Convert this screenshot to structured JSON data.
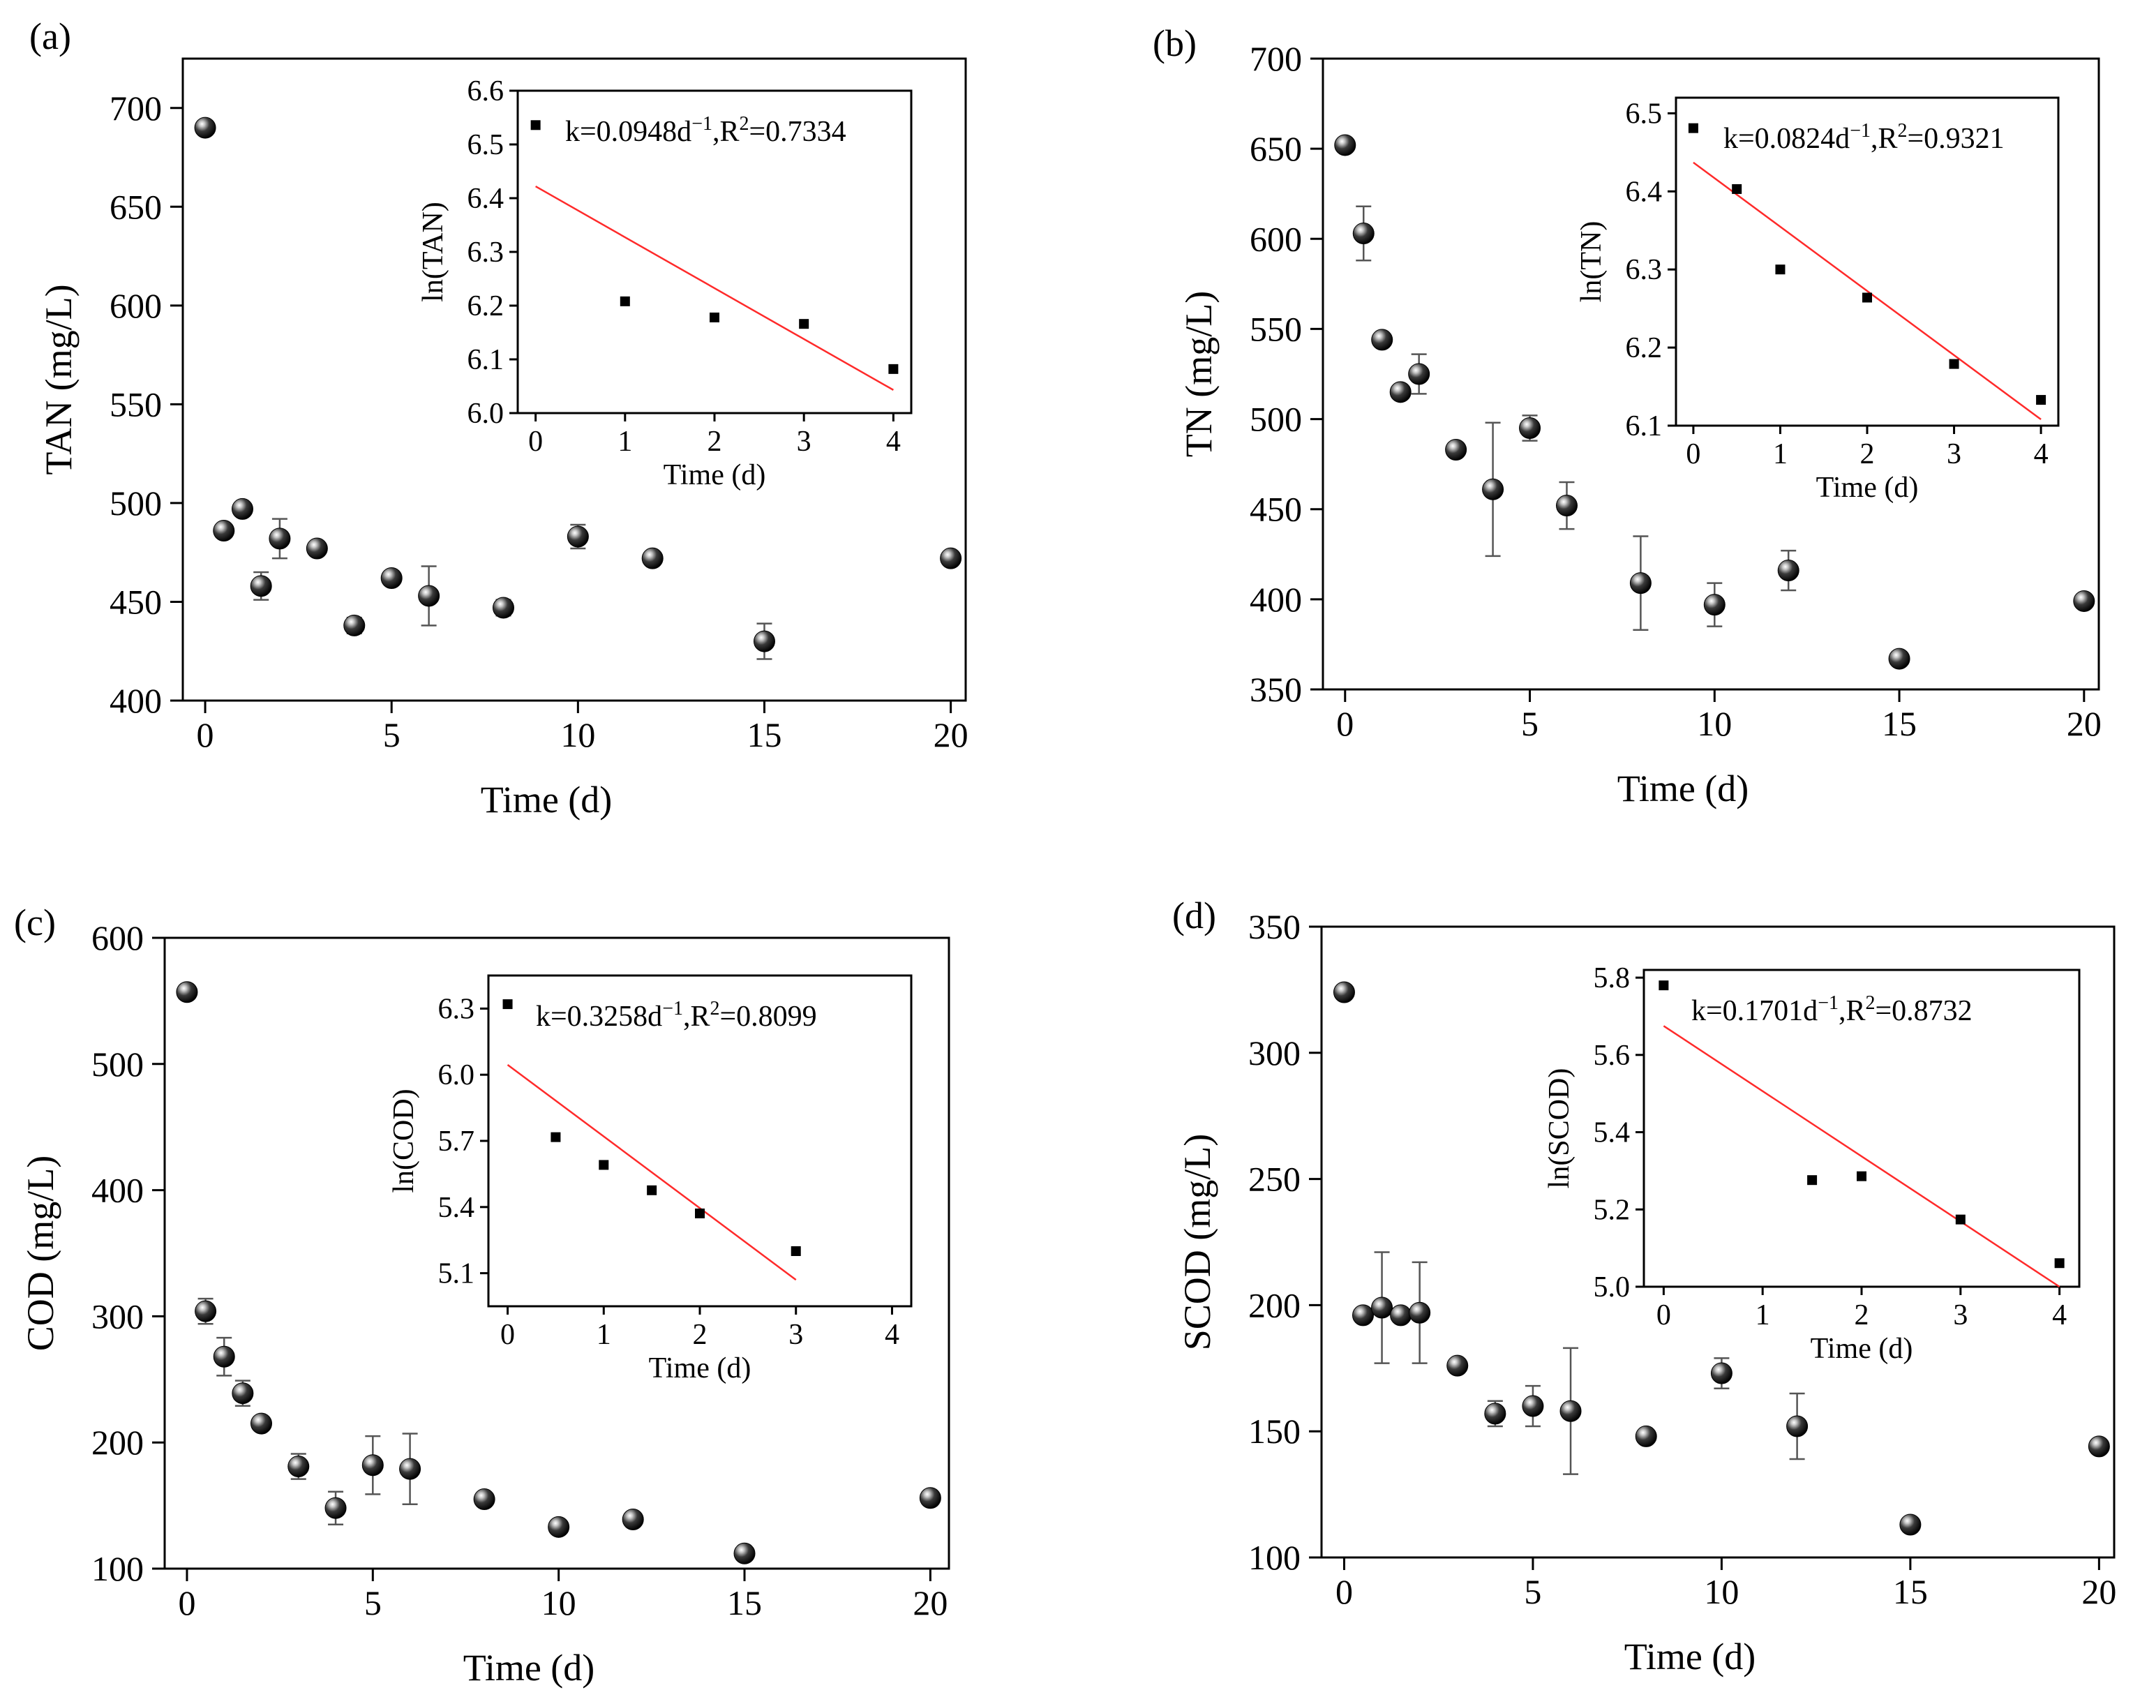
{
  "figure": {
    "x_tick_labels": [
      "0",
      "5",
      "10",
      "15",
      "20"
    ],
    "x_label": "Time (d)"
  },
  "chart_data": [
    {
      "type": "scatter",
      "panel_label": "(a)",
      "xlabel": "Time (d)",
      "ylabel": "TAN (mg/L)",
      "xlim": [
        -0.6,
        20.4
      ],
      "ylim": [
        400,
        725
      ],
      "xticks": [
        0,
        5,
        10,
        15,
        20
      ],
      "yticks": [
        400,
        450,
        500,
        550,
        600,
        650,
        700
      ],
      "x": [
        0,
        0.5,
        1,
        1.5,
        2,
        3,
        4,
        5,
        6,
        8,
        10,
        12,
        15,
        20
      ],
      "y": [
        690,
        486,
        497,
        458,
        482,
        477,
        438,
        462,
        453,
        447,
        483,
        472,
        430,
        472
      ],
      "err": [
        0,
        0,
        0,
        7,
        10,
        0,
        4,
        0,
        15,
        4,
        6,
        0,
        9,
        0
      ],
      "inset": {
        "xlabel": "Time (d)",
        "ylabel": "ln(TAN)",
        "xlim": [
          -0.2,
          4.2
        ],
        "ylim": [
          6.0,
          6.6
        ],
        "xticks": [
          0,
          1,
          2,
          3,
          4
        ],
        "yticks": [
          6.0,
          6.1,
          6.2,
          6.3,
          6.4,
          6.5,
          6.6
        ],
        "yticklabels": [
          "6.0",
          "6.1",
          "6.2",
          "6.3",
          "6.4",
          "6.5",
          "6.6"
        ],
        "x": [
          0,
          1,
          2,
          3,
          4
        ],
        "y": [
          6.536,
          6.208,
          6.178,
          6.166,
          6.082
        ],
        "fit": [
          [
            0,
            6.422
          ],
          [
            4,
            6.043
          ]
        ],
        "legend": {
          "k": "k=0.0948d",
          "sup1": "−1",
          "r": ",R",
          "sup2": "2",
          "val": "=0.7334"
        }
      }
    },
    {
      "type": "scatter",
      "panel_label": "(b)",
      "xlabel": "Time (d)",
      "ylabel": "TN (mg/L)",
      "xlim": [
        -0.6,
        20.4
      ],
      "ylim": [
        350,
        700
      ],
      "xticks": [
        0,
        5,
        10,
        15,
        20
      ],
      "yticks": [
        350,
        400,
        450,
        500,
        550,
        600,
        650,
        700
      ],
      "x": [
        0,
        0.5,
        1,
        1.5,
        2,
        3,
        4,
        5,
        6,
        8,
        10,
        12,
        15,
        20
      ],
      "y": [
        652,
        603,
        544,
        515,
        525,
        483,
        461,
        495,
        452,
        409,
        397,
        416,
        367,
        399
      ],
      "err": [
        0,
        15,
        0,
        0,
        11,
        0,
        37,
        7,
        13,
        26,
        12,
        11,
        0,
        0
      ],
      "inset": {
        "xlabel": "Time (d)",
        "ylabel": "ln(TN)",
        "xlim": [
          -0.2,
          4.2
        ],
        "ylim": [
          6.1,
          6.52
        ],
        "xticks": [
          0,
          1,
          2,
          3,
          4
        ],
        "yticks": [
          6.1,
          6.2,
          6.3,
          6.4,
          6.5
        ],
        "yticklabels": [
          "6.1",
          "6.2",
          "6.3",
          "6.4",
          "6.5"
        ],
        "x": [
          0,
          0.5,
          1,
          2,
          3,
          4
        ],
        "y": [
          6.481,
          6.403,
          6.3,
          6.264,
          6.179,
          6.133
        ],
        "fit": [
          [
            0,
            6.437
          ],
          [
            4,
            6.108
          ]
        ],
        "legend": {
          "k": "k=0.0824d",
          "sup1": "−1",
          "r": ",R",
          "sup2": "2",
          "val": "=0.9321"
        }
      }
    },
    {
      "type": "scatter",
      "panel_label": "(c)",
      "xlabel": "Time (d)",
      "ylabel": "COD (mg/L)",
      "xlim": [
        -0.6,
        20.5
      ],
      "ylim": [
        100,
        600
      ],
      "xticks": [
        0,
        5,
        10,
        15,
        20
      ],
      "yticks": [
        100,
        200,
        300,
        400,
        500,
        600
      ],
      "x": [
        0,
        0.5,
        1,
        1.5,
        2,
        3,
        4,
        5,
        6,
        8,
        10,
        12,
        15,
        20
      ],
      "y": [
        557,
        304,
        268,
        239,
        215,
        181,
        148,
        182,
        179,
        155,
        133,
        139,
        112,
        156
      ],
      "err": [
        0,
        10,
        15,
        10,
        0,
        10,
        13,
        23,
        28,
        0,
        0,
        0,
        0,
        0
      ],
      "inset": {
        "xlabel": "Time (d)",
        "ylabel": "ln(COD)",
        "xlim": [
          -0.2,
          4.2
        ],
        "ylim": [
          4.95,
          6.45
        ],
        "xticks": [
          0,
          1,
          2,
          3,
          4
        ],
        "yticks": [
          5.1,
          5.4,
          5.7,
          6.0,
          6.3
        ],
        "yticklabels": [
          "5.1",
          "5.4",
          "5.7",
          "6.0",
          "6.3"
        ],
        "x": [
          0,
          0.5,
          1,
          1.5,
          2,
          3
        ],
        "y": [
          6.32,
          5.717,
          5.591,
          5.476,
          5.371,
          5.2
        ],
        "fit": [
          [
            0,
            6.045
          ],
          [
            3,
            5.07
          ]
        ],
        "legend": {
          "k": "k=0.3258d",
          "sup1": "−1",
          "r": ",R",
          "sup2": "2",
          "val": "=0.8099"
        }
      }
    },
    {
      "type": "scatter",
      "panel_label": "(d)",
      "xlabel": "Time (d)",
      "ylabel": "SCOD (mg/L)",
      "xlim": [
        -0.6,
        20.4
      ],
      "ylim": [
        100,
        350
      ],
      "xticks": [
        0,
        5,
        10,
        15,
        20
      ],
      "yticks": [
        100,
        150,
        200,
        250,
        300,
        350
      ],
      "x": [
        0,
        0.5,
        1,
        1.5,
        2,
        3,
        4,
        5,
        6,
        8,
        10,
        12,
        15,
        20
      ],
      "y": [
        324,
        196,
        199,
        196,
        197,
        176,
        157,
        160,
        158,
        148,
        173,
        152,
        113,
        144
      ],
      "err": [
        0,
        0,
        22,
        0,
        20,
        0,
        5,
        8,
        25,
        0,
        6,
        13,
        0,
        0
      ],
      "inset": {
        "xlabel": "Time (d)",
        "ylabel": "ln(SCOD)",
        "xlim": [
          -0.2,
          4.2
        ],
        "ylim": [
          5.0,
          5.82
        ],
        "xticks": [
          0,
          1,
          2,
          3,
          4
        ],
        "yticks": [
          5.0,
          5.2,
          5.4,
          5.6,
          5.8
        ],
        "yticklabels": [
          "5.0",
          "5.2",
          "5.4",
          "5.6",
          "5.8"
        ],
        "x": [
          0,
          1.5,
          2,
          3,
          4
        ],
        "y": [
          5.78,
          5.276,
          5.286,
          5.174,
          5.061
        ],
        "fit": [
          [
            0,
            5.675
          ],
          [
            4,
            5.0
          ]
        ],
        "legend": {
          "k": "k=0.1701d",
          "sup1": "−1",
          "r": ",R",
          "sup2": "2",
          "val": "=0.8732"
        }
      }
    }
  ]
}
